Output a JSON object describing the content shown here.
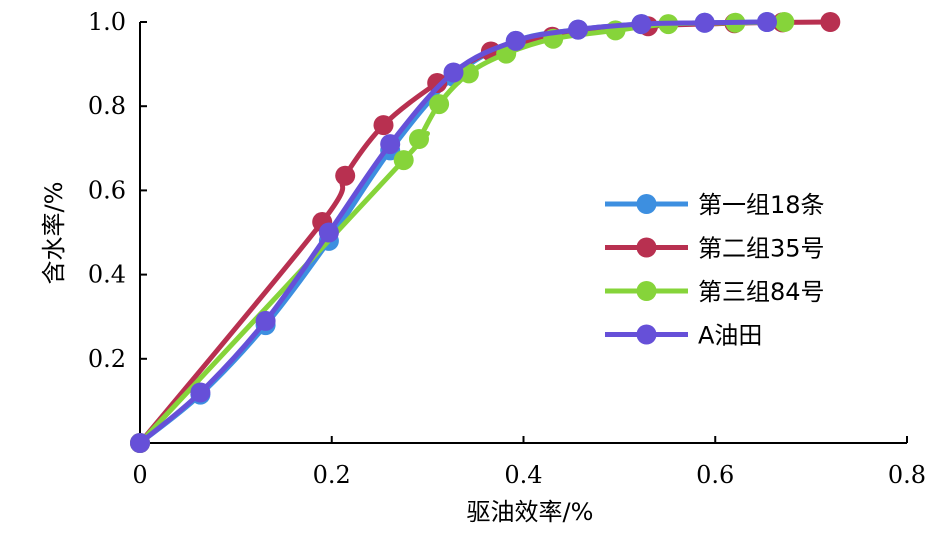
{
  "chart_data": {
    "type": "line",
    "xlabel": "驱油效率/%",
    "ylabel": "含水率/%",
    "xlim": [
      0,
      0.8
    ],
    "ylim": [
      0,
      1.0
    ],
    "x_ticks": [
      0,
      0.2,
      0.4,
      0.6,
      0.8
    ],
    "x_tick_labels": [
      "0",
      "0.2",
      "0.4",
      "0.6",
      "0.8"
    ],
    "y_ticks": [
      0.2,
      0.4,
      0.6,
      0.8,
      1.0
    ],
    "y_tick_labels": [
      "0.2",
      "0.4",
      "0.6",
      "0.8",
      "1.0"
    ],
    "grid": false,
    "legend_position": "right",
    "series": [
      {
        "name": "第一组18条",
        "color": "#3d8fe0",
        "x": [
          0,
          0.063,
          0.131,
          0.197,
          0.261,
          0.327,
          0.392,
          0.457,
          0.523,
          0.589,
          0.654
        ],
        "y": [
          0,
          0.115,
          0.28,
          0.48,
          0.695,
          0.87,
          0.955,
          0.982,
          0.995,
          0.998,
          1.0
        ]
      },
      {
        "name": "第二组35号",
        "color": "#b83050",
        "x": [
          0,
          0.19,
          0.214,
          0.254,
          0.31,
          0.366,
          0.43,
          0.53,
          0.62,
          0.67,
          0.72
        ],
        "y": [
          0,
          0.525,
          0.635,
          0.755,
          0.855,
          0.93,
          0.965,
          0.99,
          0.997,
          0.999,
          1.0
        ]
      },
      {
        "name": "第三组84号",
        "color": "#86d43a",
        "x": [
          0,
          0.275,
          0.291,
          0.312,
          0.343,
          0.382,
          0.431,
          0.496,
          0.551,
          0.621,
          0.672
        ],
        "y": [
          0,
          0.672,
          0.722,
          0.805,
          0.878,
          0.925,
          0.96,
          0.98,
          0.995,
          0.998,
          1.0
        ]
      },
      {
        "name": "A油田",
        "color": "#6650d8",
        "x": [
          0,
          0.063,
          0.131,
          0.197,
          0.261,
          0.327,
          0.392,
          0.457,
          0.523,
          0.589,
          0.654
        ],
        "y": [
          0,
          0.12,
          0.29,
          0.5,
          0.71,
          0.88,
          0.955,
          0.982,
          0.995,
          0.998,
          1.0
        ]
      }
    ]
  }
}
